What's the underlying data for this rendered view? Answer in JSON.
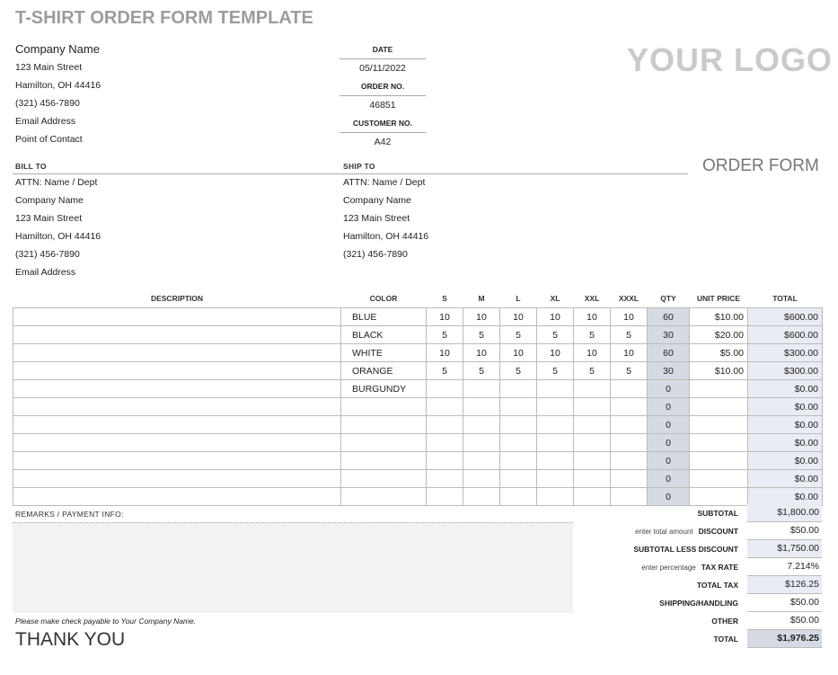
{
  "title": "T-SHIRT ORDER FORM TEMPLATE",
  "logo": "YOUR LOGO",
  "form_title": "ORDER FORM",
  "company": {
    "name": "Company Name",
    "street": "123 Main Street",
    "city": "Hamilton, OH 44416",
    "phone": "(321) 456-7890",
    "email": "Email Address",
    "contact": "Point of Contact"
  },
  "meta": {
    "date_label": "DATE",
    "date": "05/11/2022",
    "order_label": "ORDER NO.",
    "order": "46851",
    "customer_label": "CUSTOMER NO.",
    "customer": "A42"
  },
  "bill_to": {
    "label": "BILL TO",
    "attn": "ATTN: Name / Dept",
    "company": "Company Name",
    "street": "123 Main Street",
    "city": "Hamilton, OH 44416",
    "phone": "(321) 456-7890",
    "email": "Email Address"
  },
  "ship_to": {
    "label": "SHIP TO",
    "attn": "ATTN: Name / Dept",
    "company": "Company Name",
    "street": "123 Main Street",
    "city": "Hamilton, OH 44416",
    "phone": "(321) 456-7890"
  },
  "columns": [
    "DESCRIPTION",
    "COLOR",
    "S",
    "M",
    "L",
    "XL",
    "XXL",
    "XXXL",
    "QTY",
    "UNIT PRICE",
    "TOTAL"
  ],
  "rows": [
    [
      "",
      "BLUE",
      "10",
      "10",
      "10",
      "10",
      "10",
      "10",
      "60",
      "$10.00",
      "$600.00"
    ],
    [
      "",
      "BLACK",
      "5",
      "5",
      "5",
      "5",
      "5",
      "5",
      "30",
      "$20.00",
      "$600.00"
    ],
    [
      "",
      "WHITE",
      "10",
      "10",
      "10",
      "10",
      "10",
      "10",
      "60",
      "$5.00",
      "$300.00"
    ],
    [
      "",
      "ORANGE",
      "5",
      "5",
      "5",
      "5",
      "5",
      "5",
      "30",
      "$10.00",
      "$300.00"
    ],
    [
      "",
      "BURGUNDY",
      "",
      "",
      "",
      "",
      "",
      "",
      "0",
      "",
      "$0.00"
    ],
    [
      "",
      "",
      "",
      "",
      "",
      "",
      "",
      "",
      "0",
      "",
      "$0.00"
    ],
    [
      "",
      "",
      "",
      "",
      "",
      "",
      "",
      "",
      "0",
      "",
      "$0.00"
    ],
    [
      "",
      "",
      "",
      "",
      "",
      "",
      "",
      "",
      "0",
      "",
      "$0.00"
    ],
    [
      "",
      "",
      "",
      "",
      "",
      "",
      "",
      "",
      "0",
      "",
      "$0.00"
    ],
    [
      "",
      "",
      "",
      "",
      "",
      "",
      "",
      "",
      "0",
      "",
      "$0.00"
    ],
    [
      "",
      "",
      "",
      "",
      "",
      "",
      "",
      "",
      "0",
      "",
      "$0.00"
    ]
  ],
  "remarks_label": "REMARKS / PAYMENT INFO:",
  "payable_note": "Please make check payable to Your Company Name.",
  "thank_you": "THANK YOU",
  "totals": [
    {
      "hint": "",
      "label": "SUBTOTAL",
      "value": "$1,800.00"
    },
    {
      "hint": "enter total amount",
      "label": "DISCOUNT",
      "value": "$50.00"
    },
    {
      "hint": "",
      "label": "SUBTOTAL LESS DISCOUNT",
      "value": "$1,750.00"
    },
    {
      "hint": "enter percentage",
      "label": "TAX RATE",
      "value": "7.214%"
    },
    {
      "hint": "",
      "label": "TOTAL TAX",
      "value": "$126.25"
    },
    {
      "hint": "",
      "label": "SHIPPING/HANDLING",
      "value": "$50.00"
    },
    {
      "hint": "",
      "label": "OTHER",
      "value": "$50.00"
    },
    {
      "hint": "",
      "label": "TOTAL",
      "value": "$1,976.25"
    }
  ]
}
